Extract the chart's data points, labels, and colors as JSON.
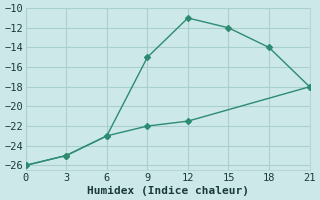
{
  "xlabel": "Humidex (Indice chaleur)",
  "line1_x": [
    0,
    3,
    6,
    9,
    12,
    15,
    18,
    21
  ],
  "line1_y": [
    -26,
    -25,
    -23,
    -15,
    -11,
    -12,
    -14,
    -18
  ],
  "line2_x": [
    0,
    3,
    6,
    9,
    12,
    21
  ],
  "line2_y": [
    -26,
    -25,
    -23,
    -22,
    -21.5,
    -18
  ],
  "line_color": "#2d8b72",
  "bg_color": "#cce8e8",
  "grid_color": "#aacfcf",
  "text_color": "#1a3a3a",
  "xlim": [
    0,
    21
  ],
  "ylim": [
    -26.5,
    -10
  ],
  "xticks": [
    0,
    3,
    6,
    9,
    12,
    15,
    18,
    21
  ],
  "yticks": [
    -26,
    -24,
    -22,
    -20,
    -18,
    -16,
    -14,
    -12,
    -10
  ],
  "marker": "D",
  "markersize": 3,
  "linewidth": 1.0,
  "font_family": "monospace",
  "tick_fontsize": 7.5,
  "xlabel_fontsize": 8
}
